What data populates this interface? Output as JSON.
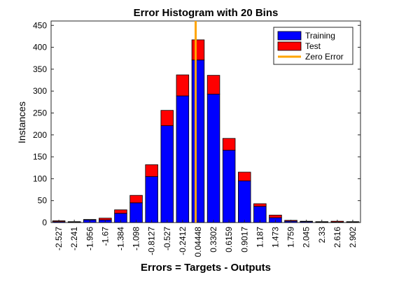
{
  "chart_data": {
    "type": "bar",
    "title": "Error Histogram with 20 Bins",
    "xlabel": "Errors = Targets - Outputs",
    "ylabel": "Instances",
    "ylim": [
      0,
      460
    ],
    "yticks": [
      0,
      50,
      100,
      150,
      200,
      250,
      300,
      350,
      400,
      450
    ],
    "categories": [
      "-2.527",
      "-2.241",
      "-1.956",
      "-1.67",
      "-1.384",
      "-1.098",
      "-0.8127",
      "-0.527",
      "-0.2412",
      "0.04448",
      "0.3302",
      "0.6159",
      "0.9017",
      "1.187",
      "1.473",
      "1.759",
      "2.045",
      "2.33",
      "2.616",
      "2.902"
    ],
    "stacked": true,
    "series": [
      {
        "name": "Training",
        "color": "#0000ff",
        "values": [
          2,
          1,
          6,
          6,
          21,
          45,
          105,
          221,
          289,
          371,
          293,
          165,
          95,
          37,
          11,
          3,
          2,
          1,
          1,
          1
        ]
      },
      {
        "name": "Test",
        "color": "#ff0000",
        "values": [
          2,
          1,
          1,
          4,
          8,
          17,
          27,
          35,
          48,
          46,
          43,
          27,
          20,
          6,
          6,
          2,
          1,
          1,
          2,
          1
        ]
      }
    ],
    "reference_line": {
      "name": "Zero Error",
      "color": "#ffa500",
      "x": 0
    },
    "legend": "top-right",
    "grid": false
  }
}
